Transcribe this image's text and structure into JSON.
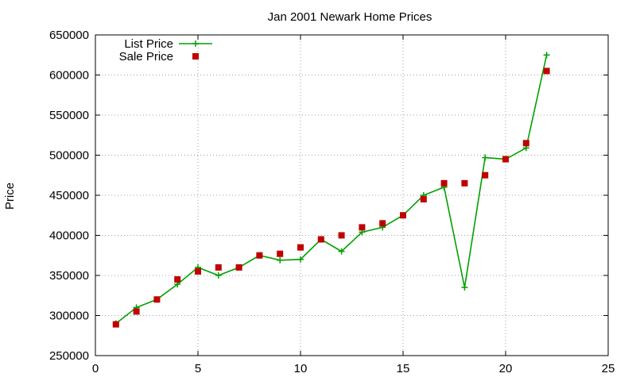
{
  "chart_data": {
    "type": "line",
    "title": "Jan 2001 Newark Home Prices",
    "xlabel": "",
    "ylabel": "Price",
    "xlim": [
      0,
      25
    ],
    "ylim": [
      250000,
      650000
    ],
    "xticks": [
      0,
      5,
      10,
      15,
      20,
      25
    ],
    "yticks": [
      250000,
      300000,
      350000,
      400000,
      450000,
      500000,
      550000,
      600000,
      650000
    ],
    "grid": true,
    "legend_position": "top-left",
    "series": [
      {
        "name": "List Price",
        "style": "line-with-plus-markers",
        "color": "#00a000",
        "x": [
          1,
          2,
          3,
          4,
          5,
          6,
          7,
          8,
          9,
          10,
          11,
          12,
          13,
          14,
          15,
          16,
          17,
          18,
          19,
          20,
          21,
          22
        ],
        "y": [
          290000,
          310000,
          320000,
          339000,
          360000,
          350000,
          360000,
          375000,
          369000,
          370000,
          395000,
          380000,
          404000,
          410000,
          425000,
          450000,
          460000,
          335000,
          497000,
          495000,
          509000,
          625000
        ]
      },
      {
        "name": "Sale Price",
        "style": "square-markers",
        "color": "#c00000",
        "x": [
          1,
          2,
          3,
          4,
          5,
          6,
          7,
          8,
          9,
          10,
          11,
          12,
          13,
          14,
          15,
          16,
          17,
          18,
          19,
          20,
          21,
          22
        ],
        "y": [
          289000,
          305000,
          320000,
          345000,
          355000,
          360000,
          360000,
          375000,
          377000,
          385000,
          395000,
          400000,
          410000,
          415000,
          425000,
          445000,
          465000,
          465000,
          475000,
          495000,
          515000,
          605000
        ]
      }
    ]
  }
}
